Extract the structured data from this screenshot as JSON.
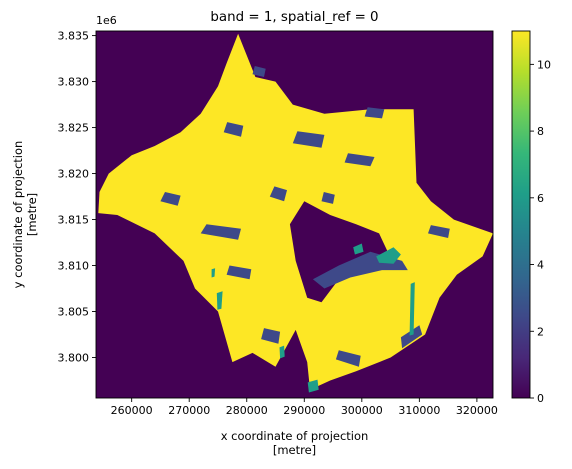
{
  "chart_data": {
    "type": "heatmap",
    "title": "band = 1, spatial_ref = 0",
    "xlabel": "x coordinate of projection\n[metre]",
    "ylabel": "y coordinate of projection\n[metre]",
    "xlim": [
      253800,
      322800
    ],
    "ylim": [
      3795600,
      3835500
    ],
    "x_ticks": [
      {
        "value": 260000,
        "label": "260000"
      },
      {
        "value": 270000,
        "label": "270000"
      },
      {
        "value": 280000,
        "label": "280000"
      },
      {
        "value": 290000,
        "label": "290000"
      },
      {
        "value": 300000,
        "label": "300000"
      },
      {
        "value": 310000,
        "label": "310000"
      },
      {
        "value": 320000,
        "label": "320000"
      }
    ],
    "y_ticks": [
      {
        "value": 3800000,
        "label": "3.800"
      },
      {
        "value": 3805000,
        "label": "3.805"
      },
      {
        "value": 3810000,
        "label": "3.810"
      },
      {
        "value": 3815000,
        "label": "3.815"
      },
      {
        "value": 3820000,
        "label": "3.820"
      },
      {
        "value": 3825000,
        "label": "3.825"
      },
      {
        "value": 3830000,
        "label": "3.830"
      },
      {
        "value": 3835000,
        "label": "3.835"
      }
    ],
    "y_offset_label": "1e6",
    "colorbar": {
      "colormap": "viridis",
      "vmin": 0,
      "vmax": 11,
      "ticks": [
        {
          "value": 0,
          "label": "0"
        },
        {
          "value": 2,
          "label": "2"
        },
        {
          "value": 4,
          "label": "4"
        },
        {
          "value": 6,
          "label": "6"
        },
        {
          "value": 8,
          "label": "8"
        },
        {
          "value": 10,
          "label": "10"
        }
      ]
    },
    "background_value": 0,
    "dominant_value": 11,
    "region_outline": [
      [
        278500,
        3835200
      ],
      [
        281500,
        3830500
      ],
      [
        285000,
        3830000
      ],
      [
        288000,
        3827500
      ],
      [
        293500,
        3826500
      ],
      [
        301500,
        3827000
      ],
      [
        309000,
        3827000
      ],
      [
        309500,
        3819000
      ],
      [
        312000,
        3817000
      ],
      [
        316000,
        3815000
      ],
      [
        322800,
        3813500
      ],
      [
        321000,
        3811000
      ],
      [
        316500,
        3809000
      ],
      [
        313500,
        3806500
      ],
      [
        311000,
        3802500
      ],
      [
        305000,
        3800000
      ],
      [
        299000,
        3798500
      ],
      [
        294500,
        3797500
      ],
      [
        291000,
        3796500
      ],
      [
        290500,
        3799500
      ],
      [
        288500,
        3803000
      ],
      [
        285000,
        3799000
      ],
      [
        281000,
        3800500
      ],
      [
        277500,
        3799500
      ],
      [
        275000,
        3805000
      ],
      [
        271000,
        3807500
      ],
      [
        269000,
        3810500
      ],
      [
        264000,
        3813500
      ],
      [
        257500,
        3815500
      ],
      [
        254200,
        3815700
      ],
      [
        254400,
        3818000
      ],
      [
        256000,
        3820000
      ],
      [
        260000,
        3822000
      ],
      [
        264000,
        3823000
      ],
      [
        268500,
        3824500
      ],
      [
        272000,
        3826500
      ],
      [
        275000,
        3829500
      ],
      [
        276500,
        3832000
      ]
    ],
    "hole_outline": [
      [
        290000,
        3817000
      ],
      [
        294500,
        3815500
      ],
      [
        299000,
        3814500
      ],
      [
        303000,
        3813500
      ],
      [
        304500,
        3811500
      ],
      [
        300000,
        3810000
      ],
      [
        296000,
        3808500
      ],
      [
        293000,
        3806000
      ],
      [
        290500,
        3806500
      ],
      [
        288500,
        3810500
      ],
      [
        287500,
        3814500
      ]
    ],
    "value_patches": [
      {
        "value": 2,
        "polygon": [
          [
            291500,
            3808500
          ],
          [
            296000,
            3810000
          ],
          [
            301500,
            3811500
          ],
          [
            307000,
            3810500
          ],
          [
            308000,
            3809500
          ],
          [
            303500,
            3809500
          ],
          [
            298000,
            3808700
          ],
          [
            293500,
            3807500
          ]
        ]
      },
      {
        "value": 2,
        "polygon": [
          [
            297000,
            3821200
          ],
          [
            301500,
            3820800
          ],
          [
            302200,
            3821800
          ],
          [
            297600,
            3822200
          ]
        ]
      },
      {
        "value": 2,
        "polygon": [
          [
            284000,
            3817500
          ],
          [
            286500,
            3817000
          ],
          [
            287000,
            3818200
          ],
          [
            284800,
            3818600
          ]
        ]
      },
      {
        "value": 2,
        "polygon": [
          [
            272000,
            3813500
          ],
          [
            278500,
            3812800
          ],
          [
            279000,
            3814000
          ],
          [
            273000,
            3814500
          ]
        ]
      },
      {
        "value": 2,
        "polygon": [
          [
            288000,
            3823300
          ],
          [
            293000,
            3822800
          ],
          [
            293500,
            3824200
          ],
          [
            288800,
            3824600
          ]
        ]
      },
      {
        "value": 2,
        "polygon": [
          [
            265000,
            3817000
          ],
          [
            268000,
            3816500
          ],
          [
            268500,
            3817600
          ],
          [
            265800,
            3818000
          ]
        ]
      },
      {
        "value": 2,
        "polygon": [
          [
            276000,
            3824500
          ],
          [
            279000,
            3824000
          ],
          [
            279400,
            3825200
          ],
          [
            276600,
            3825600
          ]
        ]
      },
      {
        "value": 2,
        "polygon": [
          [
            300500,
            3826200
          ],
          [
            303500,
            3826000
          ],
          [
            303900,
            3827000
          ],
          [
            301000,
            3827200
          ]
        ]
      },
      {
        "value": 2,
        "polygon": [
          [
            281000,
            3830800
          ],
          [
            283000,
            3830500
          ],
          [
            283300,
            3831400
          ],
          [
            281400,
            3831700
          ]
        ]
      },
      {
        "value": 2,
        "polygon": [
          [
            293000,
            3817000
          ],
          [
            295000,
            3816700
          ],
          [
            295300,
            3817700
          ],
          [
            293400,
            3818000
          ]
        ]
      },
      {
        "value": 2,
        "polygon": [
          [
            282500,
            3802000
          ],
          [
            285500,
            3801500
          ],
          [
            285800,
            3802800
          ],
          [
            283000,
            3803200
          ]
        ]
      },
      {
        "value": 2,
        "polygon": [
          [
            307000,
            3801000
          ],
          [
            310500,
            3802500
          ],
          [
            310000,
            3803500
          ],
          [
            306800,
            3802200
          ]
        ]
      },
      {
        "value": 2,
        "polygon": [
          [
            295500,
            3799800
          ],
          [
            299500,
            3799000
          ],
          [
            299800,
            3800200
          ],
          [
            296000,
            3800800
          ]
        ]
      },
      {
        "value": 2,
        "polygon": [
          [
            276500,
            3809000
          ],
          [
            280500,
            3808500
          ],
          [
            280800,
            3809600
          ],
          [
            277000,
            3810000
          ]
        ]
      },
      {
        "value": 2,
        "polygon": [
          [
            311500,
            3813500
          ],
          [
            315000,
            3813000
          ],
          [
            315300,
            3814000
          ],
          [
            312000,
            3814400
          ]
        ]
      },
      {
        "value": 6,
        "polygon": [
          [
            302500,
            3811000
          ],
          [
            305500,
            3812000
          ],
          [
            306800,
            3811200
          ],
          [
            305500,
            3810200
          ],
          [
            303000,
            3810300
          ]
        ]
      },
      {
        "value": 6,
        "polygon": [
          [
            298500,
            3812000
          ],
          [
            300000,
            3812400
          ],
          [
            300300,
            3811500
          ],
          [
            298800,
            3811200
          ]
        ]
      },
      {
        "value": 6,
        "polygon": [
          [
            308500,
            3808000
          ],
          [
            309200,
            3808200
          ],
          [
            309000,
            3802500
          ],
          [
            308300,
            3802400
          ]
        ]
      },
      {
        "value": 6,
        "polygon": [
          [
            274800,
            3807000
          ],
          [
            275800,
            3807200
          ],
          [
            275600,
            3805300
          ],
          [
            274900,
            3805200
          ]
        ]
      },
      {
        "value": 6,
        "polygon": [
          [
            273900,
            3809600
          ],
          [
            274500,
            3809700
          ],
          [
            274400,
            3808800
          ],
          [
            273900,
            3808700
          ]
        ]
      },
      {
        "value": 6,
        "polygon": [
          [
            290600,
            3797300
          ],
          [
            292300,
            3797600
          ],
          [
            292500,
            3796500
          ],
          [
            290800,
            3796200
          ]
        ]
      },
      {
        "value": 6,
        "polygon": [
          [
            285700,
            3801100
          ],
          [
            286500,
            3801300
          ],
          [
            286600,
            3800100
          ],
          [
            285800,
            3799900
          ]
        ]
      }
    ]
  }
}
